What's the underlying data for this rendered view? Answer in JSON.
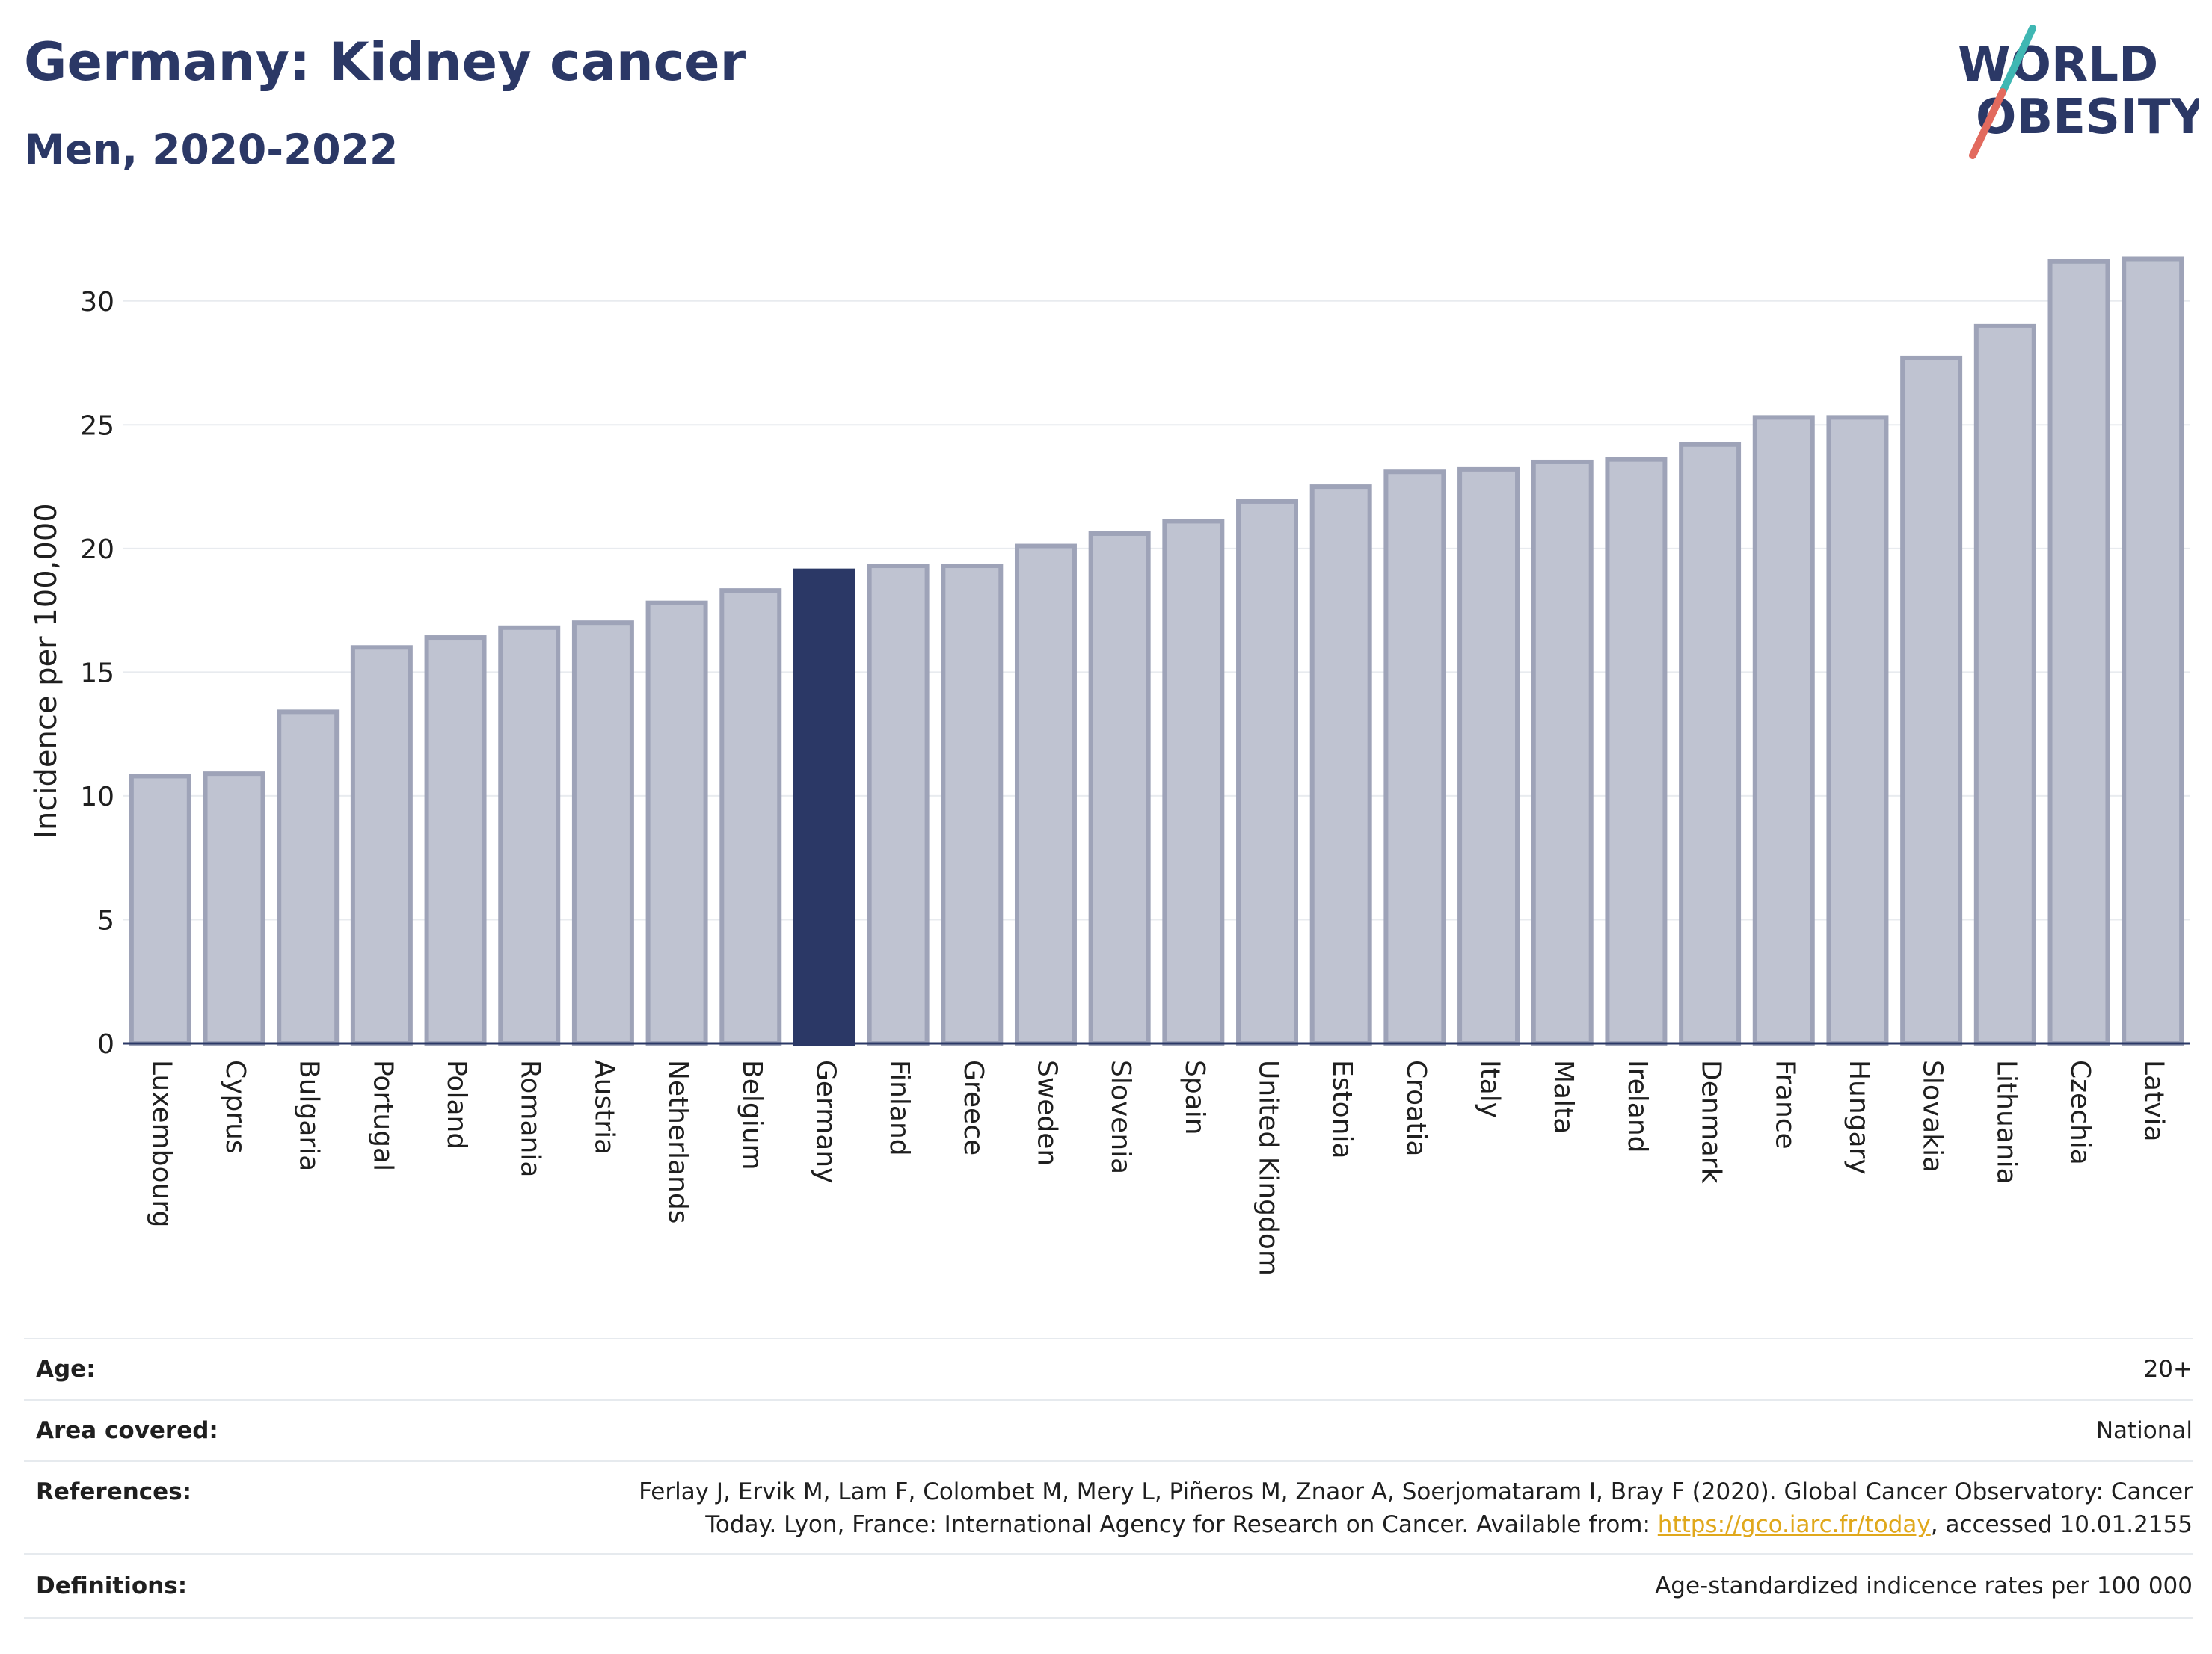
{
  "header": {
    "title": "Germany: Kidney cancer",
    "subtitle": "Men, 2020-2022"
  },
  "logo": {
    "line1": "WORLD",
    "line2": "OBESITY"
  },
  "chart_data": {
    "type": "bar",
    "ylabel": "Incidence per 100,000",
    "xlabel": "",
    "ylim": [
      0,
      32.5
    ],
    "yticks": [
      0,
      5,
      10,
      15,
      20,
      25,
      30
    ],
    "grid": true,
    "highlight": "Germany",
    "colors": {
      "bar": "#bfc3d1",
      "bar_border": "#9ea3b8",
      "highlight": "#2b3866"
    },
    "categories": [
      "Luxembourg",
      "Cyprus",
      "Bulgaria",
      "Portugal",
      "Poland",
      "Romania",
      "Austria",
      "Netherlands",
      "Belgium",
      "Germany",
      "Finland",
      "Greece",
      "Sweden",
      "Slovenia",
      "Spain",
      "United Kingdom",
      "Estonia",
      "Croatia",
      "Italy",
      "Malta",
      "Ireland",
      "Denmark",
      "France",
      "Hungary",
      "Slovakia",
      "Lithuania",
      "Czechia",
      "Latvia"
    ],
    "values": [
      10.8,
      10.9,
      13.4,
      16.0,
      16.4,
      16.8,
      17.0,
      17.8,
      18.3,
      19.1,
      19.3,
      19.3,
      20.1,
      20.6,
      21.1,
      21.9,
      22.5,
      23.1,
      23.2,
      23.5,
      23.6,
      24.2,
      25.3,
      25.3,
      27.7,
      29.0,
      31.6,
      31.7
    ]
  },
  "meta": {
    "age_label": "Age:",
    "age_value": "20+",
    "area_label": "Area covered:",
    "area_value": "National",
    "references_label": "References:",
    "references_line1": "Ferlay J, Ervik M, Lam F, Colombet M, Mery L, Piñeros M, Znaor A, Soerjomataram I, Bray F (2020). Global Cancer Observatory: Cancer",
    "references_line2_pre": "Today. Lyon, France: International Agency for Research on Cancer. Available from: ",
    "references_link": "https://gco.iarc.fr/today",
    "references_line2_post": ", accessed 10.01.2155",
    "definitions_label": "Definitions:",
    "definitions_value": "Age-standardized indicence rates per 100 000"
  }
}
